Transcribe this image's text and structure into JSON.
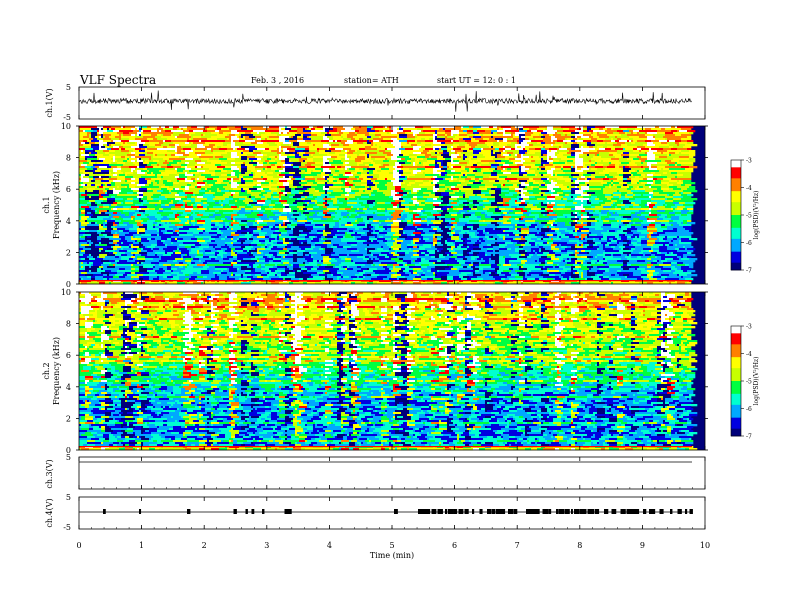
{
  "header": {
    "title": "VLF Spectra",
    "date_text": "Feb. 3  , 2016",
    "station_text": "station= ATH",
    "start_text": "start  UT  =    12: 0   : 1"
  },
  "colors": {
    "colormap": [
      "#00007a",
      "#0000e0",
      "#00a8ff",
      "#00ffd0",
      "#00ff40",
      "#c8ff00",
      "#ffff00",
      "#ff8000",
      "#ff0000",
      "#ffffff"
    ],
    "trace": "#000000"
  },
  "chart_data": [
    {
      "type": "line",
      "panel": "ch1_waveform",
      "ylabel": "ch.1(V)",
      "ylim": [
        -5,
        5
      ],
      "yticks": [
        "5",
        "-5"
      ],
      "series": [
        {
          "values": "noisy waveform around 0 V, amplitude ~1 V with frequent spikes to ±2 V"
        }
      ]
    },
    {
      "type": "heatmap",
      "panel": "ch1_spectrogram",
      "ylabel_top": "ch.1",
      "ylabel": "Frequency  (kHz)",
      "ylim": [
        0,
        10
      ],
      "yticks": [
        "0",
        "2",
        "4",
        "6",
        "8",
        "10"
      ],
      "xlim": [
        0,
        10
      ],
      "colorbar": {
        "label": "log(PSD)(V²/Hz)",
        "ticks": [
          "-3",
          "-4",
          "-5",
          "-6",
          "-7"
        ],
        "range": [
          -7,
          -3
        ]
      },
      "description_values": {
        "low_band_kHz": [
          0,
          3
        ],
        "low_band_logPSD": -6.5,
        "high_band_kHz": [
          6,
          10
        ],
        "high_band_logPSD": -4.8
      }
    },
    {
      "type": "heatmap",
      "panel": "ch2_spectrogram",
      "ylabel_top": "ch.2",
      "ylabel": "Frequency  (kHz)",
      "ylim": [
        0,
        10
      ],
      "yticks": [
        "0",
        "2",
        "4",
        "6",
        "8",
        "10"
      ],
      "xlim": [
        0,
        10
      ],
      "colorbar": {
        "label": "log(PSD)(V²/Hz)",
        "ticks": [
          "-3",
          "-4",
          "-5",
          "-6",
          "-7"
        ],
        "range": [
          -7,
          -3
        ]
      }
    },
    {
      "type": "line",
      "panel": "ch3_waveform",
      "ylabel": "ch.3(V)",
      "ylim": [
        -5,
        5
      ],
      "yticks": [
        "5",
        "-5"
      ],
      "series": [
        {
          "values": [
            0
          ]
        }
      ]
    },
    {
      "type": "line",
      "panel": "ch4_waveform",
      "ylabel": "ch.4(V)",
      "ylim": [
        -5,
        5
      ],
      "yticks": [
        "5",
        "-5"
      ],
      "series": [
        {
          "values": "mostly 0 V with dense bursts of pulses from ~5.5 to 9.8 min"
        }
      ]
    }
  ],
  "xaxis": {
    "label": "Time  (min)",
    "ticks": [
      "0",
      "1",
      "2",
      "3",
      "4",
      "5",
      "6",
      "7",
      "8",
      "9",
      "10"
    ],
    "xlim": [
      0,
      10
    ]
  }
}
